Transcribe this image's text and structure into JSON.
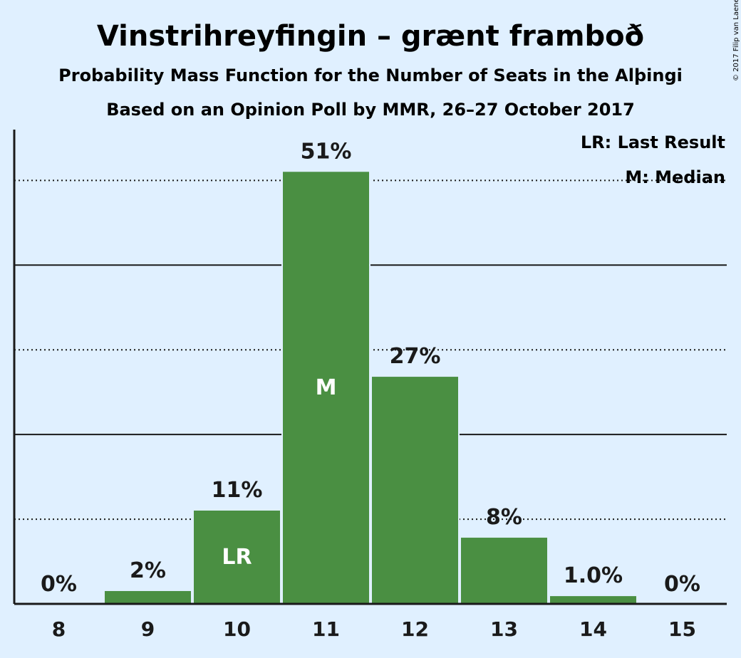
{
  "chart_data": {
    "type": "bar",
    "title": "Vinstrihreyfingin – grænt framboð",
    "subtitle_1": "Probability Mass Function for the Number of Seats in the Alþingi",
    "subtitle_2": "Based on an Opinion Poll by MMR, 26–27 October 2017",
    "copyright": "© 2017 Filip van Laenen",
    "categories": [
      "8",
      "9",
      "10",
      "11",
      "12",
      "13",
      "14",
      "15"
    ],
    "values": [
      0,
      1.6,
      11.1,
      51.1,
      26.9,
      7.9,
      1.0,
      0
    ],
    "data_labels": [
      "0%",
      "2%",
      "11%",
      "51%",
      "27%",
      "8%",
      "1.0%",
      "0%"
    ],
    "bar_annotations": [
      "",
      "",
      "LR",
      "M",
      "",
      "",
      "",
      ""
    ],
    "ylim": [
      0,
      56
    ],
    "gridlines_dotted": [
      10,
      30,
      50
    ],
    "gridlines_solid": [
      20,
      40
    ],
    "legend": {
      "position": "top-right",
      "items": [
        "LR: Last Result",
        "M: Median"
      ]
    },
    "colors": {
      "bar": "#4a8f42",
      "background": "#e0f0ff",
      "text": "#1a1a1a"
    }
  }
}
